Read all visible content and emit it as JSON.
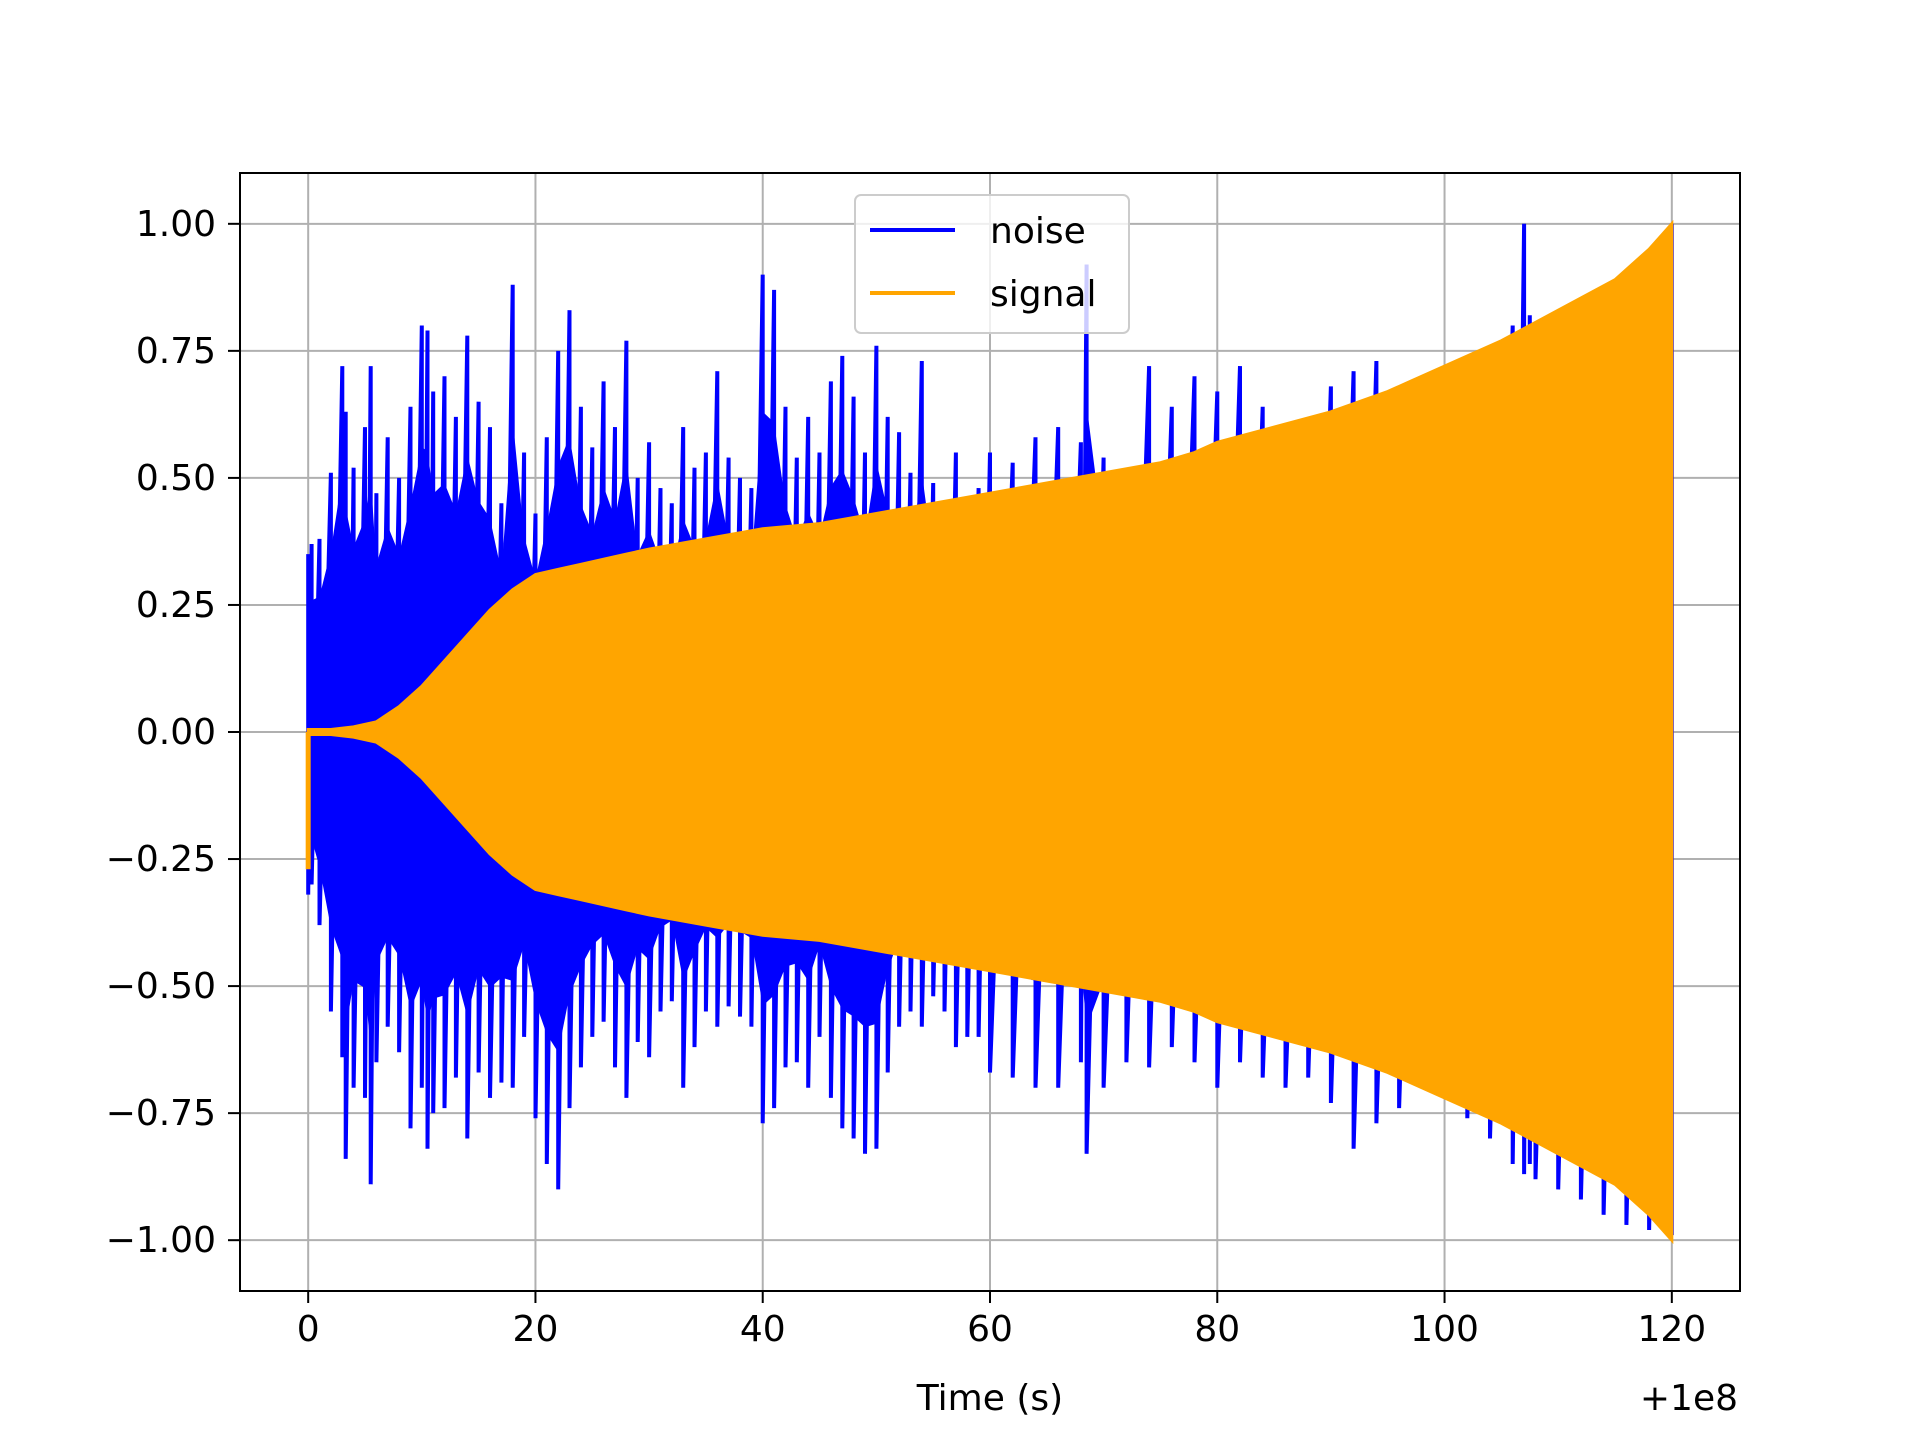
{
  "chart_data": {
    "type": "line",
    "title": "",
    "xlabel": "Time (s)",
    "ylabel": "",
    "x_offset_label": "+1e8",
    "xlim": [
      -6,
      126
    ],
    "ylim": [
      -1.1,
      1.1
    ],
    "x_ticks": [
      0,
      20,
      40,
      60,
      80,
      100,
      120
    ],
    "x_tick_labels": [
      "0",
      "20",
      "40",
      "60",
      "80",
      "100",
      "120"
    ],
    "y_ticks": [
      1.0,
      0.75,
      0.5,
      0.25,
      0.0,
      -0.25,
      -0.5,
      -0.75,
      -1.0
    ],
    "y_tick_labels": [
      "1.00",
      "0.75",
      "0.50",
      "0.25",
      "0.00",
      "−0.25",
      "−0.50",
      "−0.75",
      "−1.00"
    ],
    "grid": true,
    "legend_position": "upper-center",
    "series": [
      {
        "name": "noise",
        "color": "#0000ff",
        "x": [
          0,
          0.3,
          1,
          2,
          3,
          3.3,
          4,
          5,
          5.5,
          6,
          7,
          8,
          9,
          10,
          10.5,
          11,
          12,
          13,
          14,
          15,
          16,
          17,
          18,
          19,
          20,
          21,
          22,
          23,
          24,
          25,
          26,
          27,
          28,
          29,
          30,
          31,
          32,
          33,
          34,
          35,
          36,
          37,
          38,
          39,
          40,
          41,
          42,
          43,
          44,
          45,
          46,
          47,
          48,
          49,
          50,
          51,
          52,
          53,
          54,
          55,
          56,
          57,
          58,
          59,
          60,
          62,
          64,
          66,
          68,
          68.5,
          70,
          72,
          74,
          76,
          78,
          80,
          82,
          84,
          86,
          88,
          90,
          92,
          94,
          96,
          98,
          100,
          102,
          104,
          106,
          107,
          107.5,
          108,
          110,
          112,
          114,
          116,
          118,
          120
        ],
        "top": [
          0.35,
          0.37,
          0.38,
          0.51,
          0.72,
          0.63,
          0.52,
          0.6,
          0.72,
          0.47,
          0.58,
          0.5,
          0.64,
          0.8,
          0.79,
          0.67,
          0.7,
          0.62,
          0.78,
          0.65,
          0.6,
          0.45,
          0.88,
          0.55,
          0.43,
          0.58,
          0.75,
          0.83,
          0.64,
          0.56,
          0.69,
          0.6,
          0.77,
          0.5,
          0.57,
          0.48,
          0.45,
          0.6,
          0.52,
          0.55,
          0.71,
          0.54,
          0.5,
          0.48,
          0.9,
          0.87,
          0.64,
          0.54,
          0.62,
          0.55,
          0.69,
          0.74,
          0.66,
          0.55,
          0.76,
          0.62,
          0.59,
          0.51,
          0.73,
          0.49,
          0.45,
          0.55,
          0.45,
          0.48,
          0.55,
          0.53,
          0.58,
          0.6,
          0.57,
          0.92,
          0.54,
          0.47,
          0.72,
          0.64,
          0.7,
          0.67,
          0.72,
          0.64,
          0.58,
          0.52,
          0.68,
          0.71,
          0.73,
          0.66,
          0.64,
          0.62,
          0.68,
          0.71,
          0.8,
          1.0,
          0.82,
          0.8,
          0.78,
          0.82,
          0.86,
          0.9,
          0.95,
          1.0
        ],
        "bottom": [
          -0.32,
          -0.3,
          -0.38,
          -0.55,
          -0.64,
          -0.84,
          -0.7,
          -0.72,
          -0.89,
          -0.65,
          -0.58,
          -0.63,
          -0.78,
          -0.7,
          -0.82,
          -0.75,
          -0.74,
          -0.68,
          -0.8,
          -0.67,
          -0.72,
          -0.69,
          -0.7,
          -0.6,
          -0.76,
          -0.85,
          -0.9,
          -0.74,
          -0.66,
          -0.6,
          -0.57,
          -0.66,
          -0.72,
          -0.61,
          -0.64,
          -0.55,
          -0.53,
          -0.7,
          -0.62,
          -0.55,
          -0.58,
          -0.54,
          -0.56,
          -0.58,
          -0.77,
          -0.74,
          -0.66,
          -0.65,
          -0.7,
          -0.6,
          -0.72,
          -0.78,
          -0.8,
          -0.83,
          -0.82,
          -0.67,
          -0.58,
          -0.55,
          -0.58,
          -0.52,
          -0.55,
          -0.62,
          -0.6,
          -0.6,
          -0.67,
          -0.68,
          -0.7,
          -0.7,
          -0.65,
          -0.83,
          -0.7,
          -0.65,
          -0.66,
          -0.62,
          -0.65,
          -0.7,
          -0.65,
          -0.68,
          -0.7,
          -0.68,
          -0.73,
          -0.82,
          -0.77,
          -0.74,
          -0.7,
          -0.72,
          -0.76,
          -0.8,
          -0.85,
          -0.87,
          -0.85,
          -0.88,
          -0.9,
          -0.92,
          -0.95,
          -0.97,
          -0.98,
          -0.99
        ]
      },
      {
        "name": "signal",
        "color": "#ffa500",
        "x": [
          0,
          2,
          4,
          6,
          8,
          10,
          12,
          14,
          16,
          18,
          20,
          22,
          24,
          26,
          28,
          30,
          35,
          40,
          45,
          50,
          55,
          60,
          65,
          70,
          75,
          78,
          80,
          85,
          90,
          95,
          100,
          105,
          110,
          115,
          118,
          120
        ],
        "envelope": [
          0.005,
          0.005,
          0.01,
          0.02,
          0.05,
          0.09,
          0.14,
          0.19,
          0.24,
          0.28,
          0.31,
          0.32,
          0.33,
          0.34,
          0.35,
          0.36,
          0.38,
          0.4,
          0.41,
          0.43,
          0.45,
          0.47,
          0.49,
          0.51,
          0.53,
          0.55,
          0.57,
          0.6,
          0.63,
          0.67,
          0.72,
          0.77,
          0.83,
          0.89,
          0.95,
          1.0
        ]
      }
    ]
  }
}
